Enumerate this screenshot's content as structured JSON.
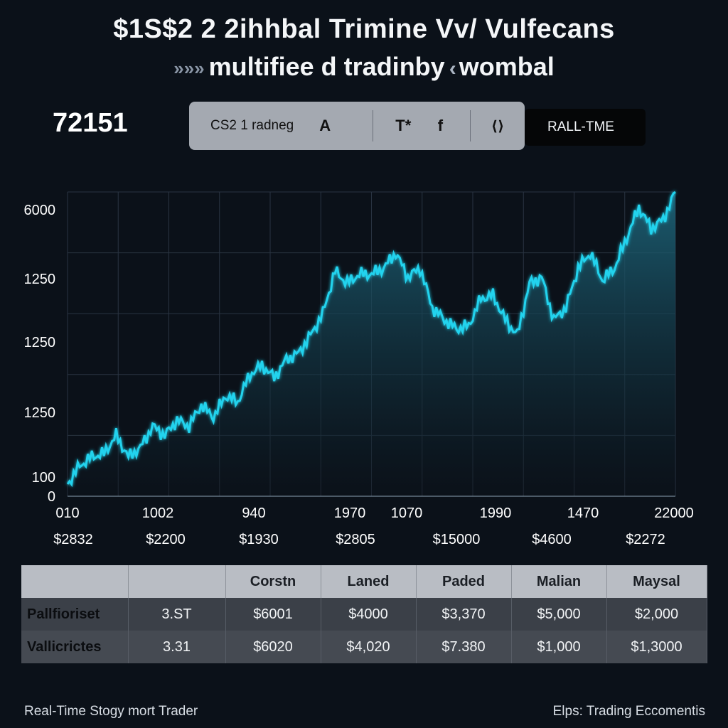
{
  "header": {
    "title": "$1S$2 2 2ihhbal Trimine Vv/ Vulfecans",
    "subtitle_prefix": "»»»",
    "subtitle_main": "multifiee d tradinby",
    "subtitle_chev": "‹",
    "subtitle_tail": "wombal"
  },
  "ticker": {
    "value": "72151"
  },
  "toolbar": {
    "label": "CS2 1 radneg",
    "btn_a": "A",
    "btn_t": "T*",
    "btn_f": "f",
    "btn_arrows": "⟨⟩",
    "realtime_label": "RALL-TME"
  },
  "chart_data": {
    "type": "area",
    "title": "",
    "y_tick_labels": [
      "6000",
      "1250",
      "1250",
      "1250",
      "100",
      "0"
    ],
    "x_tick_labels": [
      "010",
      "1002",
      "940",
      "1970",
      "1070",
      "1990",
      "1470",
      "22000"
    ],
    "x_sub_labels": [
      "$2832",
      "$2200",
      "$1930",
      "$2805",
      "$15000",
      "$4600",
      "$2272"
    ],
    "y_range": [
      0,
      100
    ],
    "grid": true,
    "colors": {
      "line": "#22d3ee",
      "fill_top": "#1e6a80",
      "fill_bottom": "#0b1119"
    },
    "series": [
      {
        "x": [
          0,
          2,
          4,
          6,
          8,
          10,
          12,
          14,
          16,
          18,
          20,
          22,
          24,
          26,
          28,
          30,
          32,
          34,
          36,
          38,
          40,
          42,
          44,
          46,
          48,
          50,
          52,
          54,
          56,
          58,
          60,
          62,
          64,
          66,
          68,
          70,
          72,
          74,
          76,
          78,
          80,
          82,
          84,
          86,
          88,
          90,
          92,
          94,
          96,
          98,
          100
        ],
        "values": [
          4,
          10,
          13,
          14,
          20,
          13,
          16,
          23,
          20,
          25,
          23,
          30,
          26,
          33,
          31,
          40,
          43,
          39,
          45,
          47,
          53,
          60,
          74,
          70,
          73,
          73,
          75,
          80,
          72,
          75,
          62,
          58,
          55,
          56,
          65,
          66,
          58,
          53,
          70,
          72,
          58,
          62,
          75,
          80,
          71,
          75,
          85,
          95,
          88,
          91,
          100
        ]
      }
    ]
  },
  "table": {
    "headers": [
      "",
      "",
      "Corstn",
      "Laned",
      "Paded",
      "Malian",
      "Maysal"
    ],
    "rows": [
      [
        "Pallfioriset",
        "3.ST",
        "$6001",
        "$4000",
        "$3,370",
        "$5,000",
        "$2,000"
      ],
      [
        "Vallicrictes",
        "3.31",
        "$6020",
        "$4,020",
        "$7.380",
        "$1,000",
        "$1,3000"
      ]
    ]
  },
  "footer": {
    "left": "Real-Time Stogy mort Trader",
    "right": "Elps: Trading Eccomentis"
  }
}
